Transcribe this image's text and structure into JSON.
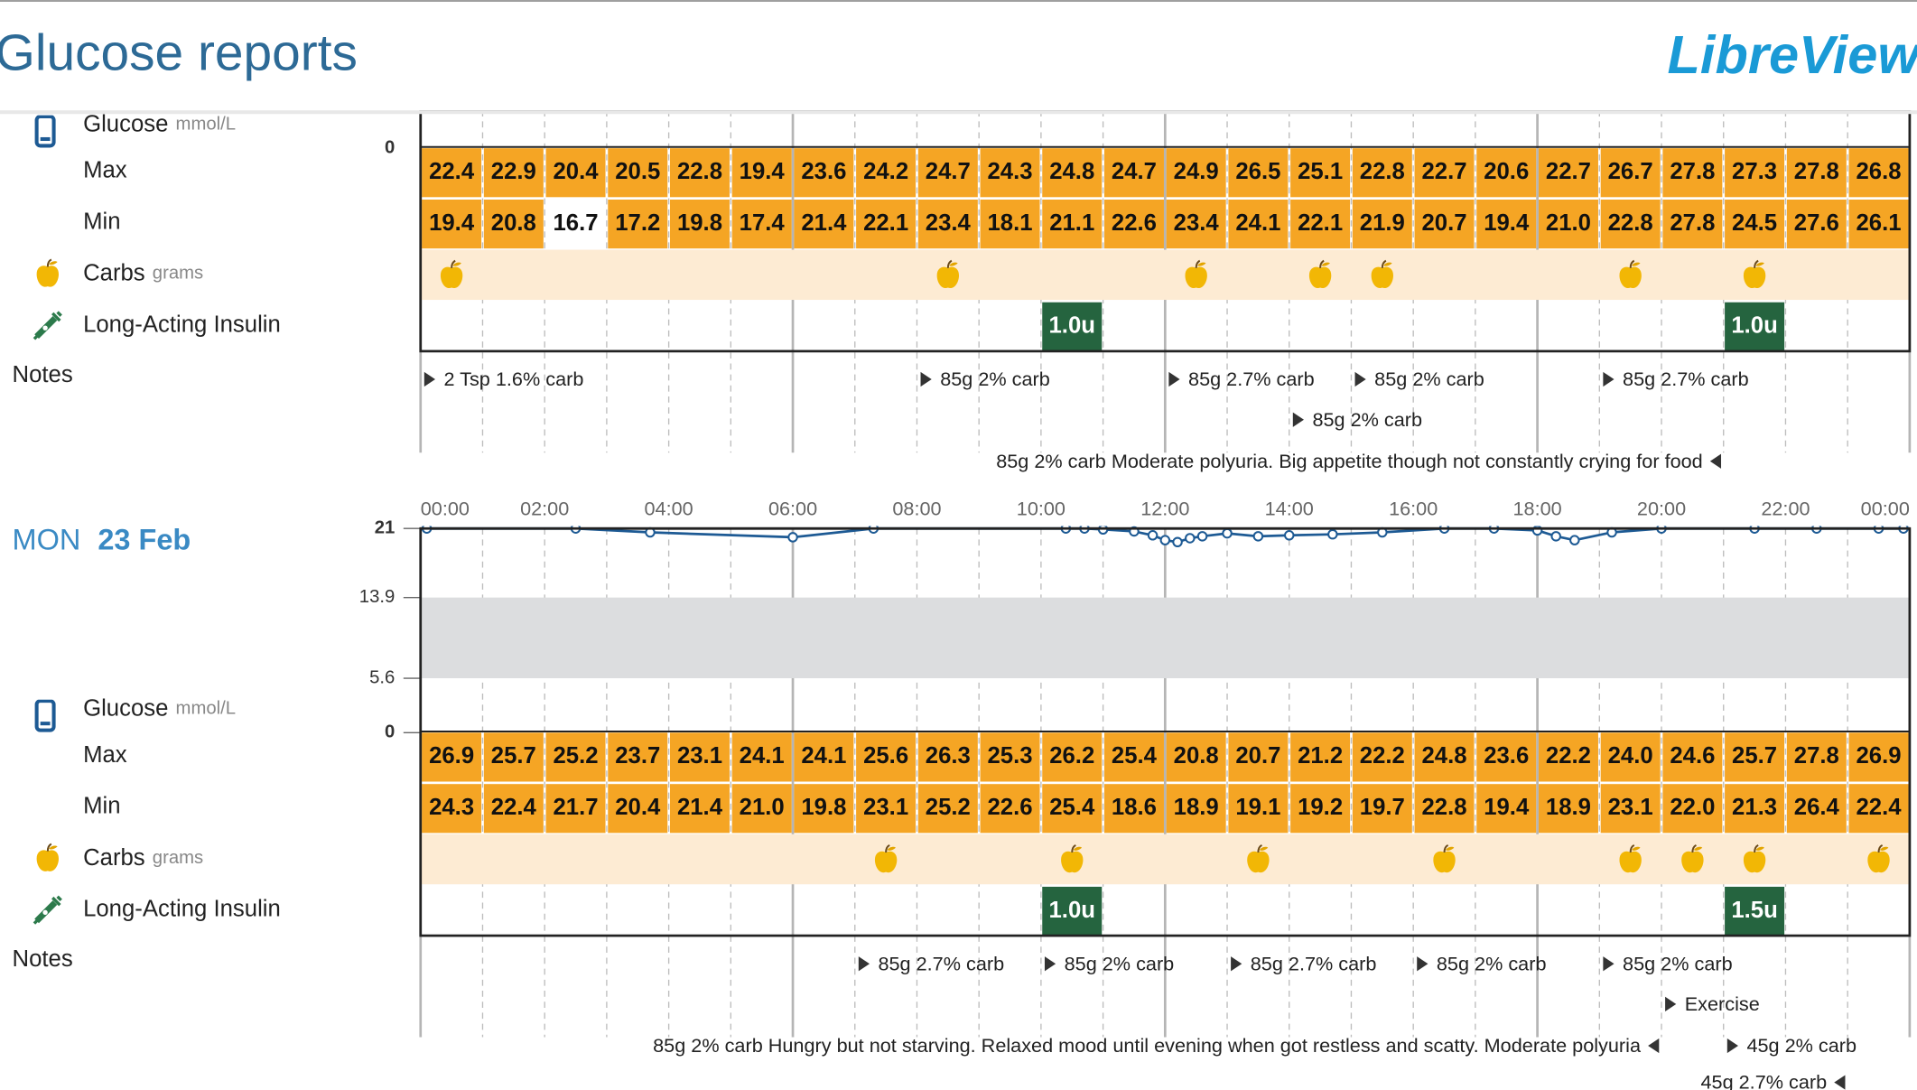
{
  "header": {
    "title": "Glucose reports",
    "brand": "LibreView"
  },
  "row_labels": {
    "glucose": "Glucose",
    "glucose_unit": "mmol/L",
    "max": "Max",
    "min": "Min",
    "carbs": "Carbs",
    "carbs_unit": "grams",
    "insulin": "Long-Acting Insulin",
    "notes": "Notes"
  },
  "cell_color": "#f5a524",
  "plain_cell_color": "#ffffff",
  "band_color": "#dcdddf",
  "line_color": "#1d5a94",
  "days": [
    {
      "yticks": [
        0
      ],
      "max": [
        "22.4",
        "22.9",
        "20.4",
        "20.5",
        "22.8",
        "19.4",
        "23.6",
        "24.2",
        "24.7",
        "24.3",
        "24.8",
        "24.7",
        "24.9",
        "26.5",
        "25.1",
        "22.8",
        "22.7",
        "20.6",
        "22.7",
        "26.7",
        "27.8",
        "27.3",
        "27.8",
        "26.8"
      ],
      "min": [
        "19.4",
        "20.8",
        "16.7",
        "17.2",
        "19.8",
        "17.4",
        "21.4",
        "22.1",
        "23.4",
        "18.1",
        "21.1",
        "22.6",
        "23.4",
        "24.1",
        "22.1",
        "21.9",
        "20.7",
        "19.4",
        "21.0",
        "22.8",
        "27.8",
        "24.5",
        "27.6",
        "26.1"
      ],
      "plain_min_cells": [
        2
      ],
      "carb_hours": [
        0,
        8,
        12,
        14,
        15,
        19,
        21
      ],
      "insulin": [
        {
          "hour": 10,
          "label": "1.0u"
        },
        {
          "hour": 21,
          "label": "1.0u"
        }
      ],
      "notes": [
        {
          "hour": 0,
          "row": 0,
          "dir": "right",
          "text": "2 Tsp 1.6% carb"
        },
        {
          "hour": 8,
          "row": 0,
          "dir": "right",
          "text": "85g 2% carb"
        },
        {
          "hour": 12,
          "row": 0,
          "dir": "right",
          "text": "85g 2.7% carb"
        },
        {
          "hour": 15,
          "row": 0,
          "dir": "right",
          "text": "85g 2% carb"
        },
        {
          "hour": 19,
          "row": 0,
          "dir": "right",
          "text": "85g 2.7% carb"
        },
        {
          "hour": 14,
          "row": 1,
          "dir": "right",
          "text": "85g 2% carb"
        },
        {
          "hour": 21,
          "row": 2,
          "dir": "left",
          "text": "85g 2% carb Moderate polyuria. Big appetite though not constantly crying for food"
        }
      ]
    },
    {
      "weekday": "MON",
      "date": "23 Feb",
      "time_labels": [
        "00:00",
        "02:00",
        "04:00",
        "06:00",
        "08:00",
        "10:00",
        "12:00",
        "14:00",
        "16:00",
        "18:00",
        "20:00",
        "22:00",
        "00:00"
      ],
      "ylim": [
        0,
        21
      ],
      "yticks": [
        0,
        5.6,
        13.9,
        21
      ],
      "target_band": [
        5.6,
        13.9
      ],
      "glucose": {
        "times": [
          0.1,
          2.5,
          3.7,
          6.0,
          7.3,
          10.4,
          10.7,
          11.0,
          11.5,
          11.8,
          12.0,
          12.2,
          12.4,
          12.6,
          13.0,
          13.5,
          14.0,
          14.7,
          15.5,
          16.5,
          17.3,
          18.0,
          18.3,
          18.6,
          19.2,
          20.0,
          21.5,
          22.5,
          23.5,
          23.9
        ],
        "values": [
          21.0,
          21.0,
          20.6,
          20.1,
          21.0,
          21.0,
          21.0,
          20.9,
          20.7,
          20.3,
          19.8,
          19.6,
          20.0,
          20.2,
          20.5,
          20.2,
          20.3,
          20.4,
          20.6,
          21.0,
          21.0,
          20.8,
          20.2,
          19.8,
          20.6,
          21.0,
          21.0,
          21.0,
          21.0,
          21.0
        ]
      },
      "max": [
        "26.9",
        "25.7",
        "25.2",
        "23.7",
        "23.1",
        "24.1",
        "24.1",
        "25.6",
        "26.3",
        "25.3",
        "26.2",
        "25.4",
        "20.8",
        "20.7",
        "21.2",
        "22.2",
        "24.8",
        "23.6",
        "22.2",
        "24.0",
        "24.6",
        "25.7",
        "27.8",
        "26.9"
      ],
      "min": [
        "24.3",
        "22.4",
        "21.7",
        "20.4",
        "21.4",
        "21.0",
        "19.8",
        "23.1",
        "25.2",
        "22.6",
        "25.4",
        "18.6",
        "18.9",
        "19.1",
        "19.2",
        "19.7",
        "22.8",
        "19.4",
        "18.9",
        "23.1",
        "22.0",
        "21.3",
        "26.4",
        "22.4"
      ],
      "plain_min_cells": [],
      "carb_hours": [
        7,
        10,
        13,
        16,
        19,
        20,
        21,
        23
      ],
      "insulin": [
        {
          "hour": 10,
          "label": "1.0u"
        },
        {
          "hour": 21,
          "label": "1.5u"
        }
      ],
      "notes": [
        {
          "hour": 7,
          "row": 0,
          "dir": "right",
          "text": "85g 2.7% carb"
        },
        {
          "hour": 10,
          "row": 0,
          "dir": "right",
          "text": "85g 2% carb"
        },
        {
          "hour": 13,
          "row": 0,
          "dir": "right",
          "text": "85g 2.7% carb"
        },
        {
          "hour": 16,
          "row": 0,
          "dir": "right",
          "text": "85g 2% carb"
        },
        {
          "hour": 19,
          "row": 0,
          "dir": "right",
          "text": "85g 2% carb"
        },
        {
          "hour": 20,
          "row": 1,
          "dir": "right",
          "text": "Exercise"
        },
        {
          "hour": 20,
          "row": 2,
          "dir": "left",
          "text": "85g 2% carb Hungry but not starving. Relaxed mood until evening when got restless and scatty. Moderate polyuria"
        },
        {
          "hour": 21,
          "row": 2,
          "dir": "right",
          "text": "45g 2% carb"
        },
        {
          "hour": 23,
          "row": 3,
          "dir": "left",
          "text": "45g 2.7% carb"
        }
      ]
    }
  ]
}
